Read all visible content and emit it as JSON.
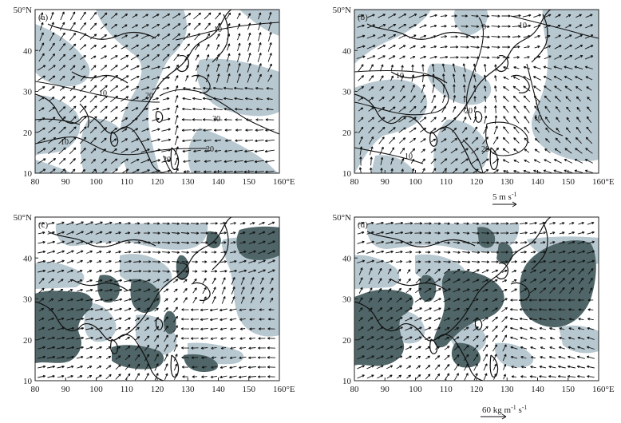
{
  "panels": [
    {
      "id": "a",
      "label": "(a)",
      "type": "wind850",
      "contour_labels": [
        "10",
        "10",
        "20",
        "30",
        "20",
        "10",
        "20"
      ]
    },
    {
      "id": "b",
      "label": "(b)",
      "type": "wind850",
      "contour_labels": [
        "0",
        "10",
        "10",
        "20",
        "0",
        "10",
        "20",
        "10"
      ]
    },
    {
      "id": "c",
      "label": "(c)",
      "type": "vapor_flux"
    },
    {
      "id": "d",
      "label": "(d)",
      "type": "vapor_flux"
    }
  ],
  "axes": {
    "x_ticks": [
      "80",
      "90",
      "100",
      "110",
      "120",
      "130",
      "140",
      "150",
      "160°E"
    ],
    "y_ticks": [
      "10",
      "20",
      "30",
      "40",
      "50°N"
    ]
  },
  "scales": {
    "wind": {
      "value": "5",
      "unit_text": "m s",
      "exp": "-1"
    },
    "flux": {
      "value": "60",
      "unit_text": "kg m",
      "exp1": "-1",
      "mid": " s",
      "exp2": "-1"
    }
  },
  "colors": {
    "light_shade": "#b8c8d0",
    "dark_shade": "#4f6567",
    "line": "#111111"
  }
}
